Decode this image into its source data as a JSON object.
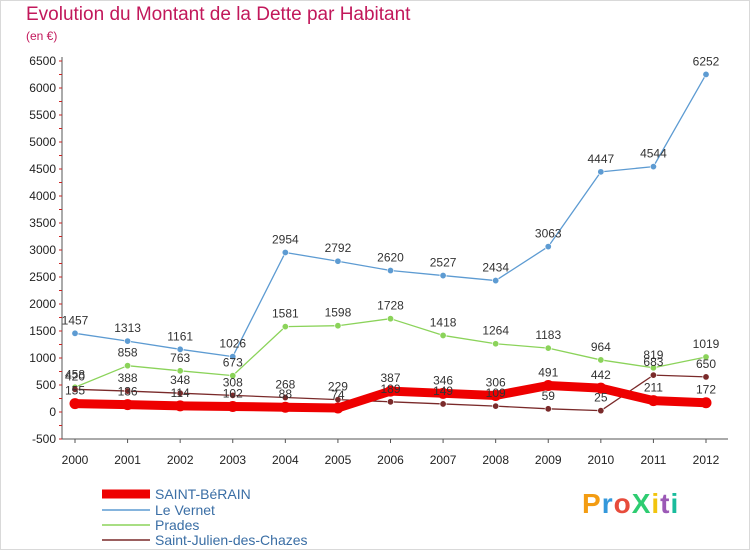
{
  "header": {
    "title": "Evolution du Montant de la Dette par Habitant",
    "subtitle": "(en €)"
  },
  "logo": {
    "text": "ProXiti"
  },
  "chart_data": {
    "type": "line",
    "title": "Evolution du Montant de la Dette par Habitant",
    "ylabel": "(en €)",
    "xlabel": "",
    "x": [
      "2000",
      "2001",
      "2002",
      "2003",
      "2004",
      "2005",
      "2006",
      "2007",
      "2008",
      "2009",
      "2010",
      "2011",
      "2012"
    ],
    "ylim": [
      -500,
      6500
    ],
    "yticks": [
      -500,
      0,
      500,
      1000,
      1500,
      2000,
      2500,
      3000,
      3500,
      4000,
      4500,
      5000,
      5500,
      6000,
      6500
    ],
    "grid": false,
    "legend_position": "bottom-left",
    "series": [
      {
        "name": "SAINT-BéRAIN",
        "color": "#ee0000",
        "values": [
          155,
          136,
          114,
          102,
          88,
          74,
          387,
          346,
          306,
          491,
          442,
          211,
          172
        ]
      },
      {
        "name": "Le Vernet",
        "color": "#5d9bd2",
        "values": [
          1457,
          1313,
          1161,
          1026,
          2954,
          2792,
          2620,
          2527,
          2434,
          3063,
          4447,
          4544,
          6252
        ]
      },
      {
        "name": "Prades",
        "color": "#8bd35a",
        "values": [
          458,
          858,
          763,
          673,
          1581,
          1598,
          1728,
          1418,
          1264,
          1183,
          964,
          819,
          1019
        ]
      },
      {
        "name": "Saint-Julien-des-Chazes",
        "color": "#7a2a2a",
        "values": [
          420,
          388,
          348,
          308,
          268,
          229,
          189,
          149,
          109,
          59,
          25,
          683,
          650
        ]
      }
    ]
  }
}
